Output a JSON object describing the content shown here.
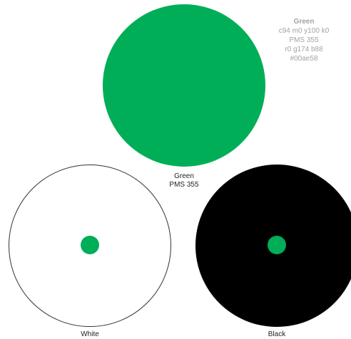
{
  "colors": {
    "green": "#00ae58",
    "white": "#ffffff",
    "black": "#000000"
  },
  "spec": {
    "name": "Green",
    "cmyk": "c94 m0 y100 k0",
    "pms": "PMS 355",
    "rgb": "r0 g174 b88",
    "hex": "#00ae58"
  },
  "main_swatch": {
    "name": "Green",
    "pms": "PMS 355"
  },
  "white_swatch": {
    "name": "White"
  },
  "black_swatch": {
    "name": "Black"
  }
}
